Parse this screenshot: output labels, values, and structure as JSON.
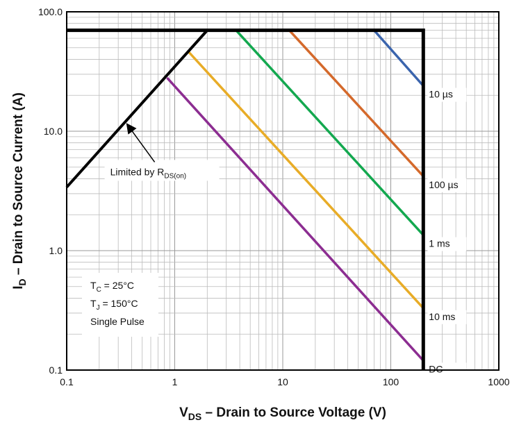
{
  "chart_data": {
    "type": "line",
    "x_label": {
      "text": "V",
      "sub": "DS",
      "rest": " – Drain to Source Voltage (V)"
    },
    "y_label": {
      "text": "I",
      "sub": "D",
      "rest": " – Drain to Source Current (A)"
    },
    "xscale": "log",
    "yscale": "log",
    "grid": true,
    "minor_grid": true,
    "xlim": [
      0.1,
      1000
    ],
    "ylim": [
      0.1,
      100
    ],
    "xticks": [
      0.1,
      1,
      10,
      100,
      1000
    ],
    "yticks": [
      0.1,
      {
        "value": 1,
        "label": "1.0"
      },
      {
        "value": 10,
        "label": "10.0"
      },
      {
        "value": 100,
        "label": "100.0"
      }
    ],
    "limit_line": {
      "color": "#000000",
      "x": [
        0.1,
        200,
        200
      ],
      "values": [
        70,
        70,
        0.1
      ]
    },
    "rds_line": {
      "color": "#000000",
      "x": [
        0.1,
        2
      ],
      "values": [
        3.4,
        70
      ]
    },
    "series": [
      {
        "name": "10 µs",
        "color": "#3a64ad",
        "x": [
          70,
          200
        ],
        "values": [
          70,
          24
        ]
      },
      {
        "name": "100 µs",
        "color": "#d4692b",
        "x": [
          11.5,
          200
        ],
        "values": [
          70,
          4.2
        ]
      },
      {
        "name": "1 ms",
        "color": "#13a84f",
        "x": [
          3.7,
          200
        ],
        "values": [
          70,
          1.35
        ]
      },
      {
        "name": "10 ms",
        "color": "#e8ac27",
        "x": [
          1.35,
          200
        ],
        "values": [
          46,
          0.33
        ]
      },
      {
        "name": "DC",
        "color": "#8c2d91",
        "x": [
          0.85,
          200
        ],
        "values": [
          28,
          0.12
        ]
      }
    ],
    "annotation": {
      "text": "Limited by R",
      "sub": "DS(on)",
      "x": 0.35,
      "y": 12
    },
    "conditions": [
      {
        "text": "T",
        "sub": "C",
        "rest": " = 25°C"
      },
      {
        "text": "T",
        "sub": "J",
        "rest": " = 150°C"
      },
      {
        "text": "Single Pulse"
      }
    ]
  }
}
